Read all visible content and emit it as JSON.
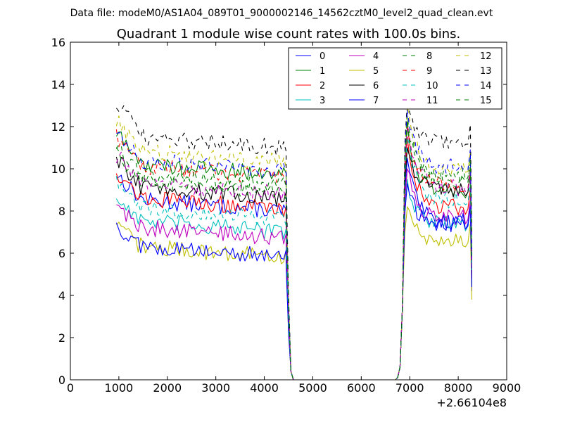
{
  "chart_data": {
    "type": "line",
    "suptitle": "Data file: modeM0/AS1A04_089T01_9000002146_14562cztM0_level2_quad_clean.evt",
    "title": "Quadrant 1 module wise count rates with 100.0s bins.",
    "xlabel": "",
    "ylabel": "",
    "x_offset_label": "+2.66104e8",
    "xlim": [
      0,
      9000
    ],
    "ylim": [
      0,
      16
    ],
    "xticks": [
      {
        "value": 0,
        "label": "0"
      },
      {
        "value": 1000,
        "label": "1000"
      },
      {
        "value": 2000,
        "label": "2000"
      },
      {
        "value": 3000,
        "label": "3000"
      },
      {
        "value": 4000,
        "label": "4000"
      },
      {
        "value": 5000,
        "label": "5000"
      },
      {
        "value": 6000,
        "label": "6000"
      },
      {
        "value": 7000,
        "label": "7000"
      },
      {
        "value": 8000,
        "label": "8000"
      },
      {
        "value": 9000,
        "label": "9000"
      }
    ],
    "yticks": [
      {
        "value": 0,
        "label": "0"
      },
      {
        "value": 2,
        "label": "2"
      },
      {
        "value": 4,
        "label": "4"
      },
      {
        "value": 6,
        "label": "6"
      },
      {
        "value": 8,
        "label": "8"
      },
      {
        "value": 10,
        "label": "10"
      },
      {
        "value": 12,
        "label": "12"
      },
      {
        "value": 14,
        "label": "14"
      },
      {
        "value": 16,
        "label": "16"
      }
    ],
    "legend_position": "top-right",
    "legend_columns": 4,
    "segments": {
      "seg1": {
        "x_start": 950,
        "x_end": 4450
      },
      "drop": [
        4450,
        4500,
        4550,
        4600
      ],
      "gap": [
        4600,
        6700
      ],
      "rise": [
        6750,
        6800,
        6850,
        6900
      ],
      "seg2": {
        "x_start": 6950,
        "x_end": 8200
      },
      "final": [
        8250,
        8280
      ]
    },
    "series": [
      {
        "name": "0",
        "color": "#0000ff",
        "dash": "solid",
        "level1": 8.6,
        "level2": 7.5,
        "peak": 10.5,
        "end_value": 4.2
      },
      {
        "name": "1",
        "color": "#008000",
        "dash": "solid",
        "level1": 10.3,
        "level2": 9.0,
        "peak": 12.0,
        "end_value": 5.5
      },
      {
        "name": "2",
        "color": "#ff0000",
        "dash": "solid",
        "level1": 8.7,
        "level2": 8.2,
        "peak": 11.5,
        "end_value": 5.0
      },
      {
        "name": "3",
        "color": "#00bfbf",
        "dash": "solid",
        "level1": 7.6,
        "level2": 7.4,
        "peak": 9.5,
        "end_value": 4.5
      },
      {
        "name": "4",
        "color": "#bf00bf",
        "dash": "solid",
        "level1": 7.3,
        "level2": 7.7,
        "peak": 10.0,
        "end_value": 4.8
      },
      {
        "name": "5",
        "color": "#bfbf00",
        "dash": "solid",
        "level1": 6.4,
        "level2": 6.6,
        "peak": 8.2,
        "end_value": 3.8
      },
      {
        "name": "6",
        "color": "#000000",
        "dash": "solid",
        "level1": 9.2,
        "level2": 9.0,
        "peak": 11.0,
        "end_value": 5.8
      },
      {
        "name": "7",
        "color": "#0000ff",
        "dash": "solid",
        "level1": 6.4,
        "level2": 7.4,
        "peak": 9.3,
        "end_value": 4.4
      },
      {
        "name": "8",
        "color": "#008000",
        "dash": "dashed",
        "level1": 9.5,
        "level2": 9.7,
        "peak": 12.5,
        "end_value": 6.0
      },
      {
        "name": "9",
        "color": "#ff0000",
        "dash": "dashed",
        "level1": 10.2,
        "level2": 9.2,
        "peak": 12.2,
        "end_value": 5.6
      },
      {
        "name": "10",
        "color": "#00bfbf",
        "dash": "dashed",
        "level1": 8.2,
        "level2": 8.5,
        "peak": 11.5,
        "end_value": 5.2
      },
      {
        "name": "11",
        "color": "#bf00bf",
        "dash": "dashed",
        "level1": 9.4,
        "level2": 9.1,
        "peak": 12.0,
        "end_value": 5.5
      },
      {
        "name": "12",
        "color": "#bfbf00",
        "dash": "dashed",
        "level1": 10.9,
        "level2": 10.0,
        "peak": 13.0,
        "end_value": 6.3
      },
      {
        "name": "13",
        "color": "#000000",
        "dash": "dashed",
        "level1": 11.6,
        "level2": 11.3,
        "peak": 13.2,
        "end_value": 6.8
      },
      {
        "name": "14",
        "color": "#0000ff",
        "dash": "dashed",
        "level1": 10.5,
        "level2": 10.1,
        "peak": 12.8,
        "end_value": 6.2
      },
      {
        "name": "15",
        "color": "#008000",
        "dash": "dashed",
        "level1": 9.8,
        "level2": 9.5,
        "peak": 12.3,
        "end_value": 5.8
      }
    ]
  }
}
